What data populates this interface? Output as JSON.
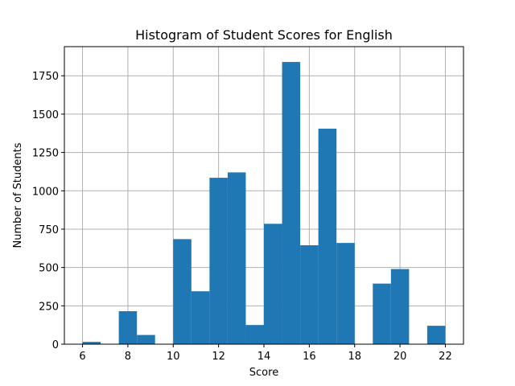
{
  "chart_data": {
    "type": "bar",
    "title": "Histogram of Student Scores for English",
    "xlabel": "Score",
    "ylabel": "Number of Students",
    "xlim": [
      5.2,
      22.8
    ],
    "ylim": [
      0,
      1940
    ],
    "grid": true,
    "bar_color": "#1f77b4",
    "grid_color": "#b0b0b0",
    "xticks": [
      6,
      8,
      10,
      12,
      14,
      16,
      18,
      20,
      22
    ],
    "yticks": [
      0,
      250,
      500,
      750,
      1000,
      1250,
      1500,
      1750
    ],
    "bin_edges": [
      6.0,
      6.8,
      7.6,
      8.4,
      9.2,
      10.0,
      10.8,
      11.6,
      12.4,
      13.2,
      14.0,
      14.8,
      15.6,
      16.4,
      17.2,
      18.0,
      18.8,
      19.6,
      20.4,
      21.2,
      22.0
    ],
    "values": [
      15,
      0,
      215,
      60,
      0,
      685,
      345,
      1085,
      1120,
      125,
      785,
      1840,
      645,
      1405,
      660,
      0,
      395,
      490,
      0,
      120
    ]
  }
}
